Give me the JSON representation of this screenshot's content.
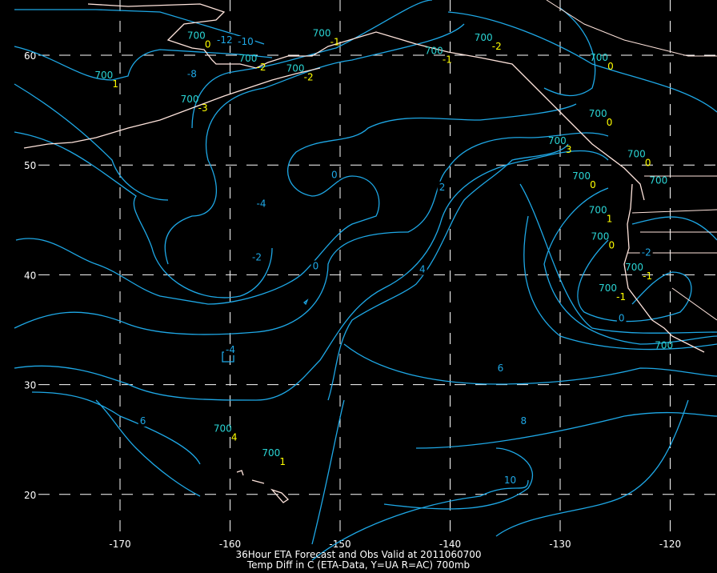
{
  "title_line1": "36Hour ETA Forecast and Obs Valid at 2011060700",
  "title_line2": "Temp Diff in C (ETA-Data, Y=UA R=AC) 700mb",
  "colors": {
    "background": "#000000",
    "contours": "#1ea8e6",
    "station_level": "#2ad4d4",
    "station_value": "#ffff00",
    "coastline": "#ffe4dc",
    "grid": "#ffffff"
  },
  "grid": {
    "longitudes": [
      -170,
      -160,
      -150,
      -140,
      -130,
      -120
    ],
    "latitudes": [
      60,
      50,
      40,
      30,
      20
    ],
    "lon_labels": [
      "-170",
      "-160",
      "-150",
      "-140",
      "-130",
      "-120"
    ],
    "lat_labels": [
      "60",
      "50",
      "40",
      "30",
      "20"
    ]
  },
  "contour_labels": [
    {
      "text": "-12",
      "lon": -161.2,
      "lat": 61.1
    },
    {
      "text": "-10",
      "lon": -159.3,
      "lat": 60.0
    },
    {
      "text": "-8",
      "lon": -163.9,
      "lat": 58.0
    },
    {
      "text": "-4",
      "lon": -157.6,
      "lat": 46.2
    },
    {
      "text": "-2",
      "lon": -158.0,
      "lat": 41.3
    },
    {
      "text": "0",
      "lon": -150.8,
      "lat": 48.8
    },
    {
      "text": "0",
      "lon": -152.5,
      "lat": 40.5
    },
    {
      "text": "2",
      "lon": -141.0,
      "lat": 47.7
    },
    {
      "text": "4",
      "lon": -142.8,
      "lat": 40.2
    },
    {
      "text": "-4",
      "lon": -160.4,
      "lat": 32.9
    },
    {
      "text": "6",
      "lon": -168.2,
      "lat": 26.4
    },
    {
      "text": "6",
      "lon": -135.7,
      "lat": 31.2
    },
    {
      "text": "8",
      "lon": -133.6,
      "lat": 26.4
    },
    {
      "text": "10",
      "lon": -135.1,
      "lat": 21.0
    },
    {
      "text": "-2",
      "lon": -122.6,
      "lat": 40.8
    },
    {
      "text": "0",
      "lon": -124.7,
      "lat": 36.7
    }
  ],
  "stations": [
    {
      "level": "700",
      "value": "1",
      "lon": -170.7,
      "lat": 57.9
    },
    {
      "level": "700",
      "value": "0",
      "lon": -162.3,
      "lat": 61.5
    },
    {
      "level": "700",
      "value": "-2",
      "lon": -157.6,
      "lat": 59.4
    },
    {
      "level": "700",
      "value": "-3",
      "lon": -162.9,
      "lat": 55.7
    },
    {
      "level": "700",
      "value": "-1",
      "lon": -150.9,
      "lat": 61.7
    },
    {
      "level": "700",
      "value": "-2",
      "lon": -153.3,
      "lat": 58.5
    },
    {
      "level": "700",
      "value": "-1",
      "lon": -140.7,
      "lat": 60.1
    },
    {
      "level": "700",
      "value": "-2",
      "lon": -136.2,
      "lat": 61.3
    },
    {
      "level": "700",
      "value": "0",
      "lon": -125.7,
      "lat": 59.5
    },
    {
      "level": "700",
      "value": "3",
      "lon": -129.5,
      "lat": 51.9
    },
    {
      "level": "700",
      "value": "0",
      "lon": -125.8,
      "lat": 54.4
    },
    {
      "level": "700",
      "value": "0",
      "lon": -122.3,
      "lat": 50.7
    },
    {
      "level": "700",
      "value": "",
      "lon": -120.3,
      "lat": 48.3
    },
    {
      "level": "700",
      "value": "0",
      "lon": -127.3,
      "lat": 48.7
    },
    {
      "level": "700",
      "value": "1",
      "lon": -125.8,
      "lat": 45.6
    },
    {
      "level": "700",
      "value": "0",
      "lon": -125.6,
      "lat": 43.2
    },
    {
      "level": "700",
      "value": "-1",
      "lon": -122.5,
      "lat": 40.4
    },
    {
      "level": "700",
      "value": "-1",
      "lon": -124.9,
      "lat": 38.5
    },
    {
      "level": "700",
      "value": "",
      "lon": -119.8,
      "lat": 33.3
    },
    {
      "level": "700",
      "value": "4",
      "lon": -159.9,
      "lat": 25.7
    },
    {
      "level": "700",
      "value": "1",
      "lon": -155.5,
      "lat": 23.5
    }
  ]
}
